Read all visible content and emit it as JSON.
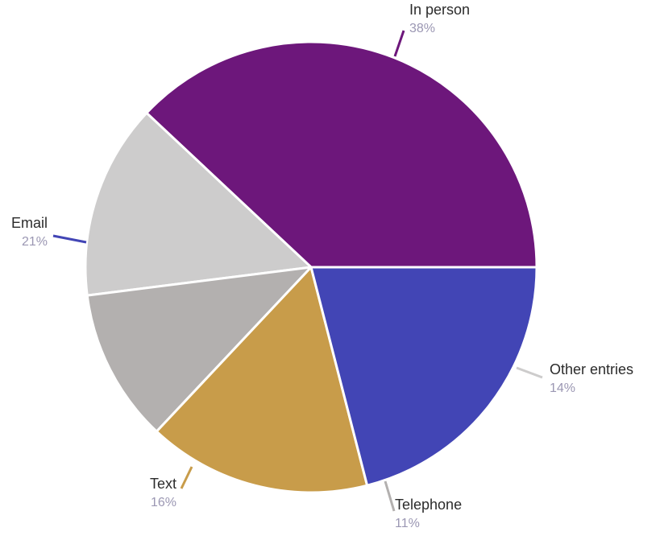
{
  "chart_data": {
    "type": "pie",
    "slices": [
      {
        "label": "In person",
        "value": 38,
        "value_label": "38%",
        "color": "#6d177b"
      },
      {
        "label": "Other entries",
        "value": 14,
        "value_label": "14%",
        "color": "#cdcccc"
      },
      {
        "label": "Telephone",
        "value": 11,
        "value_label": "11%",
        "color": "#b3b0af"
      },
      {
        "label": "Text",
        "value": 16,
        "value_label": "16%",
        "color": "#c89c4a"
      },
      {
        "label": "Email",
        "value": 21,
        "value_label": "21%",
        "color": "#4245b5"
      }
    ],
    "legend": "none"
  }
}
